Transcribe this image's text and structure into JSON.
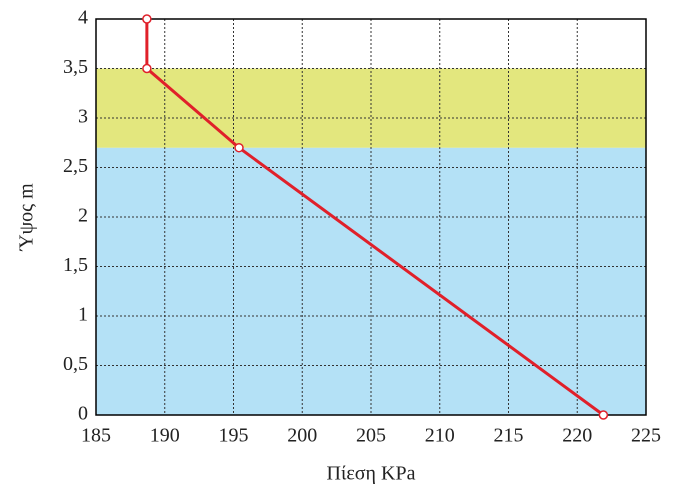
{
  "chart_data": {
    "type": "line",
    "xlabel": "Πίεση KPa",
    "ylabel": "Ύψος m",
    "x": [
      221.9,
      195.4,
      188.7,
      188.7
    ],
    "series": [
      {
        "color": "#e0202a",
        "values": [
          0,
          2.7,
          3.5,
          4
        ]
      }
    ],
    "bands": [
      {
        "from": 0,
        "to": 2.7,
        "color": "#b4e1f6"
      },
      {
        "from": 2.7,
        "to": 3.5,
        "color": "#e3e77e"
      }
    ],
    "xlim": [
      185,
      225
    ],
    "ylim": [
      0,
      4
    ],
    "xticks": [
      185,
      190,
      195,
      200,
      205,
      210,
      215,
      220,
      225
    ],
    "yticks": [
      0,
      {
        "value": 0.5,
        "label": "0,5"
      },
      1,
      {
        "value": 1.5,
        "label": "1,5"
      },
      2,
      {
        "value": 2.5,
        "label": "2,5"
      },
      3,
      {
        "value": 3.5,
        "label": "3,5"
      },
      4
    ],
    "grid": true
  }
}
